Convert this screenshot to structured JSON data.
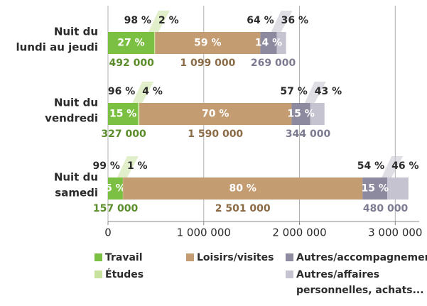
{
  "chart_data": {
    "type": "stacked-barh",
    "categories": [
      [
        "Nuit du",
        "lundi au jeudi"
      ],
      [
        "Nuit du",
        "vendredi"
      ],
      [
        "Nuit du",
        "samedi"
      ]
    ],
    "series": [
      {
        "color": "#7cc043",
        "label_color": "#5b8c2a",
        "values": [
          492000,
          327000,
          157000
        ],
        "value_labels": [
          "492 000",
          "327 000",
          "157 000"
        ],
        "share": [
          27,
          15,
          5
        ],
        "share_labels": [
          "27 %",
          "15 %",
          "5 %"
        ],
        "parts": [
          {
            "name": "Travail",
            "color": "#7cc043",
            "share": [
              98,
              96,
              99
            ],
            "share_labels": [
              "98 %",
              "96 %",
              "99 %"
            ]
          },
          {
            "name": "Études",
            "color": "#c8e29e",
            "share": [
              2,
              4,
              1
            ],
            "share_labels": [
              "2 %",
              "4 %",
              "1 %"
            ]
          }
        ]
      },
      {
        "name": "Loisirs/visites",
        "color": "#c49c72",
        "label_color": "#8a6b46",
        "values": [
          1099000,
          1590000,
          2501000
        ],
        "value_labels": [
          "1 099 000",
          "1 590 000",
          "2 501 000"
        ],
        "share": [
          59,
          70,
          80
        ],
        "share_labels": [
          "59 %",
          "70 %",
          "80 %"
        ]
      },
      {
        "color": "#8d8aa0",
        "label_color": "#7b7a90",
        "values": [
          269000,
          344000,
          480000
        ],
        "value_labels": [
          "269 000",
          "344 000",
          "480 000"
        ],
        "share": [
          14,
          15,
          15
        ],
        "share_labels": [
          "14 %",
          "15 %",
          "15 %"
        ],
        "parts": [
          {
            "name": "Autres/accompagnement",
            "color": "#8d8aa0",
            "share": [
              64,
              57,
              54
            ],
            "share_labels": [
              "64 %",
              "57 %",
              "54 %"
            ]
          },
          {
            "name": [
              "Autres/affaires",
              "personnelles, achats..."
            ],
            "color": "#c4c3cf",
            "share": [
              36,
              43,
              46
            ],
            "share_labels": [
              "36 %",
              "43 %",
              "46 %"
            ]
          }
        ]
      }
    ],
    "xlim": [
      0,
      3250000
    ],
    "xticks": [
      0,
      {
        "value": 1000000,
        "label": "1 000 000"
      },
      {
        "value": 2000000,
        "label": "2 000 000"
      },
      {
        "value": 3000000,
        "label": "3 000 000"
      }
    ],
    "grid": true
  }
}
